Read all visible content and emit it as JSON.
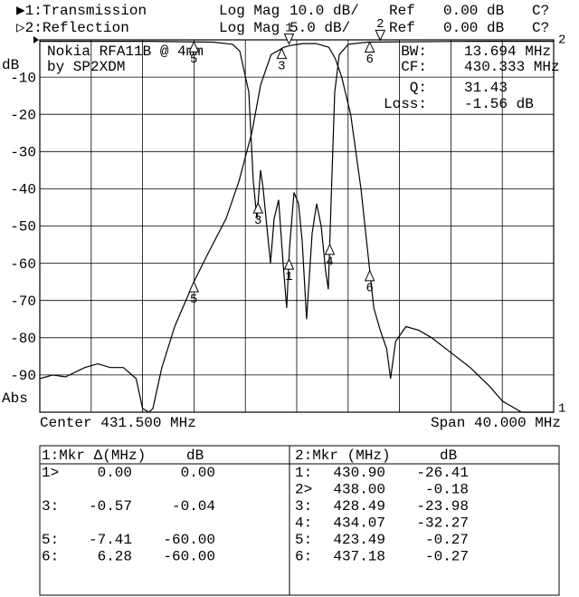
{
  "header": {
    "lines": [
      [
        "▶1:Transmission",
        "Log Mag",
        "10.0 dB/",
        "Ref",
        "0.00 dB",
        "C?"
      ],
      [
        "▷2:Reflection",
        "Log Mag",
        "5.0 dB/",
        "Ref",
        "0.00 dB",
        "C?"
      ]
    ]
  },
  "chart_data": {
    "type": "line",
    "annotations": [
      "Nokia RFA11B @ 4mm",
      "by SP2XDM"
    ],
    "y_unit": "dB",
    "y_format": "Abs",
    "readouts": [
      [
        "BW:",
        "13.694 MHz"
      ],
      [
        "CF:",
        "430.333 MHz"
      ],
      [
        "Q:",
        "31.43"
      ],
      [
        "Loss:",
        "-1.56 dB"
      ]
    ],
    "x_label_left": "Center 431.500 MHz",
    "x_label_right": "Span 40.000 MHz",
    "xlim": [
      411.5,
      451.5
    ],
    "xticks": [
      411.5,
      415.5,
      419.5,
      423.5,
      427.5,
      431.5,
      435.5,
      439.5,
      443.5,
      447.5,
      451.5
    ],
    "ylim": [
      -100,
      0
    ],
    "yticks": [
      -10,
      -20,
      -30,
      -40,
      -50,
      -60,
      -70,
      -80,
      -90
    ],
    "y2lim": [
      -50,
      0
    ],
    "grid": true,
    "series": [
      {
        "name": "Transmission",
        "color": "#000000",
        "end_label": "1",
        "x": [
          411.5,
          412.5,
          413.5,
          415,
          416,
          417,
          418,
          419,
          419.5,
          420,
          420.3,
          421,
          422,
          423.49,
          424.5,
          426,
          427,
          428,
          428.7,
          429.5,
          430.5,
          431,
          432,
          433,
          434,
          434.5,
          435,
          435.7,
          436.5,
          437.18,
          437.5,
          438,
          438.5,
          438.8,
          439.2,
          440,
          441,
          442,
          443.5,
          445,
          446.5,
          447.5,
          448.5,
          449,
          451.5
        ],
        "values": [
          -91,
          -90,
          -90.5,
          -88,
          -87,
          -88,
          -88,
          -91,
          -99,
          -100,
          -99,
          -88,
          -77,
          -65,
          -58,
          -48,
          -38,
          -25,
          -12,
          -4,
          -2,
          -1.5,
          -1,
          -1,
          -2,
          -5,
          -10,
          -20,
          -40,
          -62,
          -72,
          -78,
          -83,
          -91,
          -81,
          -77,
          -78,
          -80,
          -84,
          -88,
          -93,
          -97,
          -99,
          -100,
          -100
        ],
        "markers": [
          {
            "label": "1",
            "x": 430.9,
            "style": "down"
          },
          {
            "label": "3",
            "x": 430.33,
            "style": "up"
          },
          {
            "label": "5",
            "x": 423.49,
            "style": "up"
          },
          {
            "label": "6",
            "x": 437.18,
            "style": "up"
          }
        ]
      },
      {
        "name": "Reflection",
        "color": "#000000",
        "axis": "y2",
        "end_label": "2",
        "x": [
          411.5,
          420,
          425,
          426.5,
          427.06,
          427.77,
          428.12,
          428.4,
          428.68,
          428.89,
          429.17,
          429.46,
          429.74,
          430.09,
          430.44,
          430.72,
          430.94,
          431.29,
          431.64,
          431.92,
          432.27,
          432.7,
          433.05,
          433.4,
          433.75,
          433.96,
          434.17,
          434.46,
          434.81,
          435.51,
          437,
          445,
          451.5
        ],
        "values": [
          -0.2,
          -0.2,
          -0.3,
          -0.6,
          -1.5,
          -7,
          -19,
          -24,
          -17.5,
          -20,
          -25,
          -30,
          -24,
          -21.5,
          -30,
          -36,
          -28,
          -20.5,
          -22,
          -27,
          -37.5,
          -26,
          -22,
          -25,
          -31,
          -33.5,
          -22,
          -7,
          -2,
          -0.6,
          -0.3,
          -0.2,
          -0.2
        ],
        "markers": [
          {
            "label": "2",
            "x": 438.0,
            "style": "down"
          },
          {
            "label": "1",
            "x": 430.9,
            "style": "up"
          },
          {
            "label": "3",
            "x": 428.49,
            "style": "up"
          },
          {
            "label": "4",
            "x": 434.07,
            "style": "up"
          },
          {
            "label": "5",
            "x": 423.49,
            "style": "up"
          },
          {
            "label": "6",
            "x": 437.18,
            "style": "up"
          }
        ]
      }
    ]
  },
  "marker_tables": [
    {
      "header": [
        "1:Mkr Δ(MHz)",
        "dB"
      ],
      "rows": [
        [
          "1>",
          "0.00",
          "0.00"
        ],
        [
          "3:",
          "-0.57",
          "-0.04"
        ],
        [
          "5:",
          "-7.41",
          "-60.00"
        ],
        [
          "6:",
          "6.28",
          "-60.00"
        ]
      ]
    },
    {
      "header": [
        "2:Mkr (MHz)",
        "dB"
      ],
      "rows": [
        [
          "1:",
          "430.90",
          "-26.41"
        ],
        [
          "2>",
          "438.00",
          "-0.18"
        ],
        [
          "3:",
          "428.49",
          "-23.98"
        ],
        [
          "4:",
          "434.07",
          "-32.27"
        ],
        [
          "5:",
          "423.49",
          "-0.27"
        ],
        [
          "6:",
          "437.18",
          "-0.27"
        ]
      ]
    }
  ]
}
